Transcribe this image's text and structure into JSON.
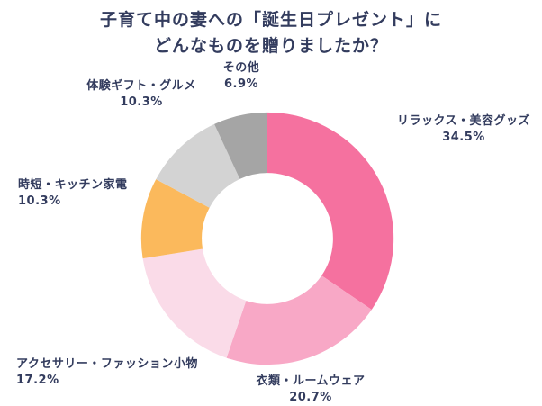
{
  "title": {
    "line1": "子育て中の妻への「誕生日プレゼント」に",
    "line2": "どんなものを贈りましたか？"
  },
  "chart_data": {
    "type": "pie",
    "subtype": "donut",
    "title": "子育て中の妻への「誕生日プレゼント」にどんなものを贈りましたか？",
    "direction": "clockwise",
    "start_angle_deg": 0,
    "inner_radius_ratio": 0.52,
    "background": "#FFFFFF",
    "text_color": "#333C5E",
    "legend": "none",
    "segments": [
      {
        "label": "リラックス・美容グッズ",
        "value": 34.5,
        "percent_label": "34.5%",
        "color": "#F5719F"
      },
      {
        "label": "衣類・ルームウェア",
        "value": 20.7,
        "percent_label": "20.7%",
        "color": "#F8A8C6"
      },
      {
        "label": "アクセサリー・ファッション小物",
        "value": 17.2,
        "percent_label": "17.2%",
        "color": "#FADBE8"
      },
      {
        "label": "時短・キッチン家電",
        "value": 10.3,
        "percent_label": "10.3%",
        "color": "#FBB95C"
      },
      {
        "label": "体験ギフト・グルメ",
        "value": 10.3,
        "percent_label": "10.3%",
        "color": "#D3D3D3"
      },
      {
        "label": "その他",
        "value": 6.9,
        "percent_label": "6.9%",
        "color": "#A5A5A5"
      }
    ]
  }
}
